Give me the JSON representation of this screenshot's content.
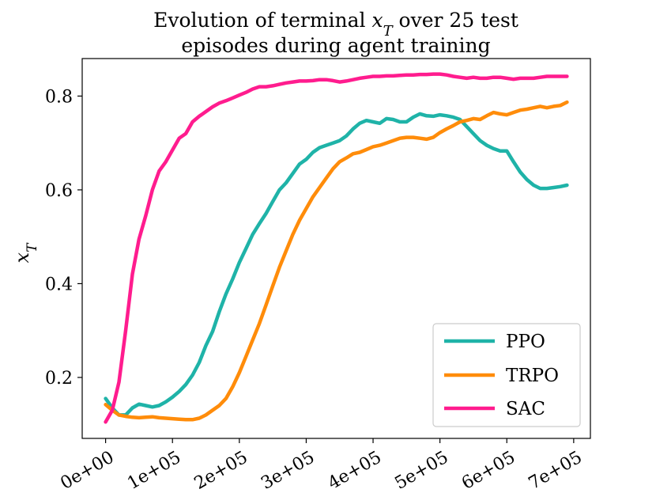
{
  "chart_data": {
    "type": "line",
    "title_lines": [
      "Evolution of terminal x_T over 25 test",
      "episodes during agent training"
    ],
    "xlabel": "",
    "ylabel": "x_T",
    "xlim": [
      -35000,
      725000
    ],
    "ylim": [
      0.07,
      0.88
    ],
    "x_ticks": [
      0,
      100000,
      200000,
      300000,
      400000,
      500000,
      600000,
      700000
    ],
    "x_tick_labels": [
      "0e+00",
      "1e+05",
      "2e+05",
      "3e+05",
      "4e+05",
      "5e+05",
      "6e+05",
      "7e+05"
    ],
    "y_ticks": [
      0.2,
      0.4,
      0.6,
      0.8
    ],
    "y_tick_labels": [
      "0.2",
      "0.4",
      "0.6",
      "0.8"
    ],
    "grid": false,
    "legend_position": "lower-right",
    "series": [
      {
        "name": "PPO",
        "color": "#1fb3a8",
        "points": [
          [
            0,
            0.155
          ],
          [
            10000,
            0.135
          ],
          [
            20000,
            0.12
          ],
          [
            30000,
            0.12
          ],
          [
            40000,
            0.135
          ],
          [
            50000,
            0.143
          ],
          [
            60000,
            0.14
          ],
          [
            70000,
            0.137
          ],
          [
            80000,
            0.14
          ],
          [
            90000,
            0.148
          ],
          [
            100000,
            0.158
          ],
          [
            110000,
            0.17
          ],
          [
            120000,
            0.185
          ],
          [
            130000,
            0.205
          ],
          [
            140000,
            0.232
          ],
          [
            150000,
            0.268
          ],
          [
            160000,
            0.298
          ],
          [
            170000,
            0.34
          ],
          [
            180000,
            0.378
          ],
          [
            190000,
            0.41
          ],
          [
            200000,
            0.445
          ],
          [
            210000,
            0.475
          ],
          [
            220000,
            0.505
          ],
          [
            230000,
            0.528
          ],
          [
            240000,
            0.55
          ],
          [
            250000,
            0.575
          ],
          [
            260000,
            0.6
          ],
          [
            270000,
            0.615
          ],
          [
            280000,
            0.635
          ],
          [
            290000,
            0.655
          ],
          [
            300000,
            0.665
          ],
          [
            310000,
            0.68
          ],
          [
            320000,
            0.69
          ],
          [
            330000,
            0.695
          ],
          [
            340000,
            0.7
          ],
          [
            350000,
            0.705
          ],
          [
            360000,
            0.715
          ],
          [
            370000,
            0.73
          ],
          [
            380000,
            0.742
          ],
          [
            390000,
            0.748
          ],
          [
            400000,
            0.745
          ],
          [
            410000,
            0.742
          ],
          [
            420000,
            0.752
          ],
          [
            430000,
            0.75
          ],
          [
            440000,
            0.745
          ],
          [
            450000,
            0.745
          ],
          [
            460000,
            0.755
          ],
          [
            470000,
            0.762
          ],
          [
            480000,
            0.758
          ],
          [
            490000,
            0.757
          ],
          [
            500000,
            0.76
          ],
          [
            510000,
            0.758
          ],
          [
            520000,
            0.755
          ],
          [
            530000,
            0.75
          ],
          [
            540000,
            0.735
          ],
          [
            550000,
            0.72
          ],
          [
            560000,
            0.705
          ],
          [
            570000,
            0.695
          ],
          [
            580000,
            0.688
          ],
          [
            590000,
            0.683
          ],
          [
            600000,
            0.683
          ],
          [
            610000,
            0.66
          ],
          [
            620000,
            0.638
          ],
          [
            630000,
            0.622
          ],
          [
            640000,
            0.61
          ],
          [
            650000,
            0.603
          ],
          [
            660000,
            0.603
          ],
          [
            670000,
            0.605
          ],
          [
            680000,
            0.607
          ],
          [
            690000,
            0.61
          ]
        ]
      },
      {
        "name": "TRPO",
        "color": "#ff8c0a",
        "points": [
          [
            0,
            0.142
          ],
          [
            10000,
            0.13
          ],
          [
            20000,
            0.12
          ],
          [
            30000,
            0.117
          ],
          [
            40000,
            0.115
          ],
          [
            50000,
            0.114
          ],
          [
            60000,
            0.115
          ],
          [
            70000,
            0.116
          ],
          [
            80000,
            0.114
          ],
          [
            90000,
            0.113
          ],
          [
            100000,
            0.112
          ],
          [
            110000,
            0.111
          ],
          [
            120000,
            0.11
          ],
          [
            130000,
            0.11
          ],
          [
            140000,
            0.113
          ],
          [
            150000,
            0.12
          ],
          [
            160000,
            0.13
          ],
          [
            170000,
            0.14
          ],
          [
            180000,
            0.155
          ],
          [
            190000,
            0.18
          ],
          [
            200000,
            0.21
          ],
          [
            210000,
            0.245
          ],
          [
            220000,
            0.28
          ],
          [
            230000,
            0.315
          ],
          [
            240000,
            0.355
          ],
          [
            250000,
            0.395
          ],
          [
            260000,
            0.435
          ],
          [
            270000,
            0.47
          ],
          [
            280000,
            0.505
          ],
          [
            290000,
            0.535
          ],
          [
            300000,
            0.56
          ],
          [
            310000,
            0.585
          ],
          [
            320000,
            0.605
          ],
          [
            330000,
            0.625
          ],
          [
            340000,
            0.645
          ],
          [
            350000,
            0.66
          ],
          [
            360000,
            0.668
          ],
          [
            370000,
            0.677
          ],
          [
            380000,
            0.68
          ],
          [
            390000,
            0.686
          ],
          [
            400000,
            0.692
          ],
          [
            410000,
            0.695
          ],
          [
            420000,
            0.7
          ],
          [
            430000,
            0.705
          ],
          [
            440000,
            0.71
          ],
          [
            450000,
            0.712
          ],
          [
            460000,
            0.712
          ],
          [
            470000,
            0.71
          ],
          [
            480000,
            0.708
          ],
          [
            490000,
            0.712
          ],
          [
            500000,
            0.722
          ],
          [
            510000,
            0.73
          ],
          [
            520000,
            0.737
          ],
          [
            530000,
            0.745
          ],
          [
            540000,
            0.748
          ],
          [
            550000,
            0.752
          ],
          [
            560000,
            0.75
          ],
          [
            570000,
            0.758
          ],
          [
            580000,
            0.765
          ],
          [
            590000,
            0.762
          ],
          [
            600000,
            0.76
          ],
          [
            610000,
            0.765
          ],
          [
            620000,
            0.77
          ],
          [
            630000,
            0.772
          ],
          [
            640000,
            0.775
          ],
          [
            650000,
            0.778
          ],
          [
            660000,
            0.775
          ],
          [
            670000,
            0.778
          ],
          [
            680000,
            0.78
          ],
          [
            690000,
            0.787
          ]
        ]
      },
      {
        "name": "SAC",
        "color": "#ff1c8e",
        "points": [
          [
            0,
            0.105
          ],
          [
            10000,
            0.13
          ],
          [
            20000,
            0.19
          ],
          [
            30000,
            0.3
          ],
          [
            40000,
            0.42
          ],
          [
            50000,
            0.495
          ],
          [
            60000,
            0.545
          ],
          [
            70000,
            0.6
          ],
          [
            80000,
            0.64
          ],
          [
            90000,
            0.66
          ],
          [
            100000,
            0.685
          ],
          [
            110000,
            0.71
          ],
          [
            120000,
            0.72
          ],
          [
            130000,
            0.745
          ],
          [
            140000,
            0.757
          ],
          [
            150000,
            0.767
          ],
          [
            160000,
            0.777
          ],
          [
            170000,
            0.785
          ],
          [
            180000,
            0.79
          ],
          [
            190000,
            0.796
          ],
          [
            200000,
            0.802
          ],
          [
            210000,
            0.808
          ],
          [
            220000,
            0.815
          ],
          [
            230000,
            0.82
          ],
          [
            240000,
            0.82
          ],
          [
            250000,
            0.822
          ],
          [
            260000,
            0.825
          ],
          [
            270000,
            0.828
          ],
          [
            280000,
            0.83
          ],
          [
            290000,
            0.832
          ],
          [
            300000,
            0.832
          ],
          [
            310000,
            0.833
          ],
          [
            320000,
            0.835
          ],
          [
            330000,
            0.835
          ],
          [
            340000,
            0.833
          ],
          [
            350000,
            0.83
          ],
          [
            360000,
            0.832
          ],
          [
            370000,
            0.835
          ],
          [
            380000,
            0.838
          ],
          [
            390000,
            0.84
          ],
          [
            400000,
            0.842
          ],
          [
            410000,
            0.842
          ],
          [
            420000,
            0.843
          ],
          [
            430000,
            0.843
          ],
          [
            440000,
            0.844
          ],
          [
            450000,
            0.845
          ],
          [
            460000,
            0.845
          ],
          [
            470000,
            0.846
          ],
          [
            480000,
            0.846
          ],
          [
            490000,
            0.847
          ],
          [
            500000,
            0.847
          ],
          [
            510000,
            0.845
          ],
          [
            520000,
            0.842
          ],
          [
            530000,
            0.84
          ],
          [
            540000,
            0.838
          ],
          [
            550000,
            0.84
          ],
          [
            560000,
            0.838
          ],
          [
            570000,
            0.838
          ],
          [
            580000,
            0.84
          ],
          [
            590000,
            0.84
          ],
          [
            600000,
            0.838
          ],
          [
            610000,
            0.836
          ],
          [
            620000,
            0.838
          ],
          [
            630000,
            0.838
          ],
          [
            640000,
            0.838
          ],
          [
            650000,
            0.84
          ],
          [
            660000,
            0.842
          ],
          [
            670000,
            0.842
          ],
          [
            680000,
            0.842
          ],
          [
            690000,
            0.842
          ]
        ]
      }
    ]
  }
}
